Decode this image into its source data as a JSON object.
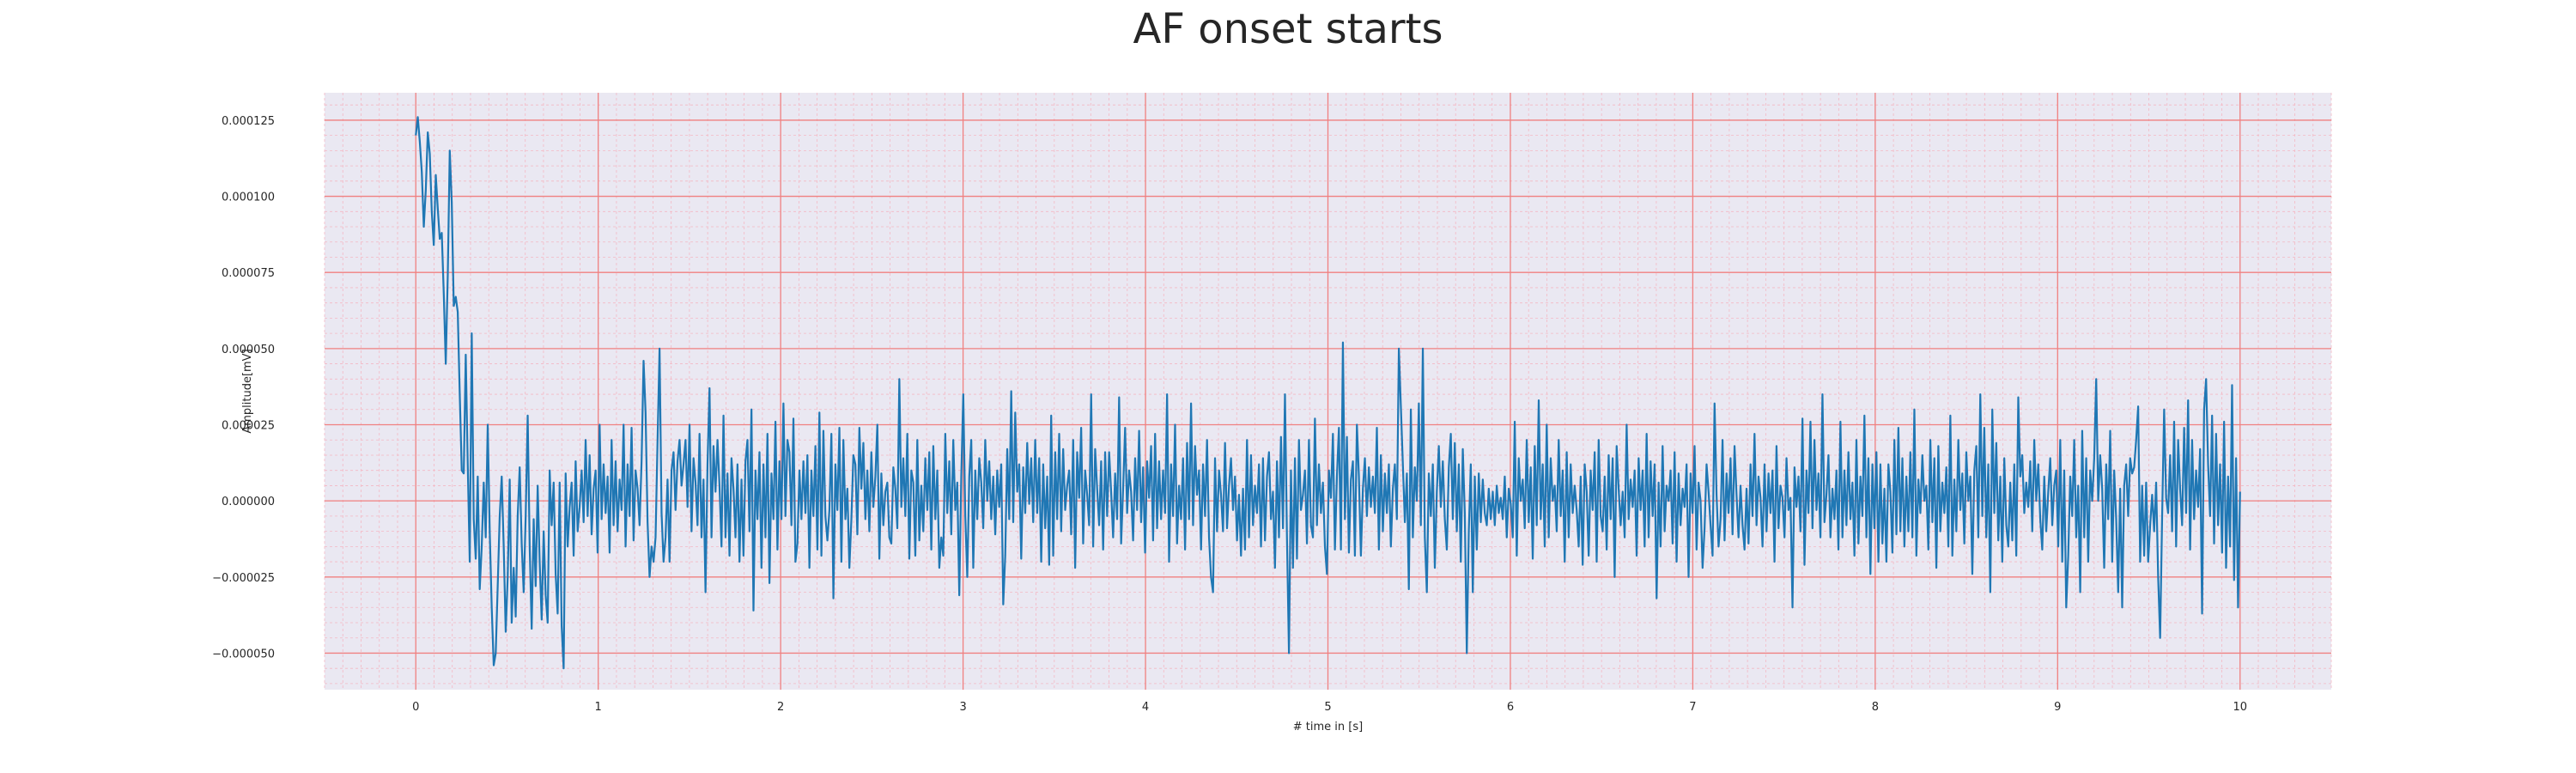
{
  "chart_data": {
    "type": "line",
    "title": "AF onset starts",
    "xlabel": "# time in [s]",
    "ylabel": "Amplitude[mV]",
    "xlim": [
      -0.5,
      10.5
    ],
    "ylim": [
      -6.2e-05,
      0.000134
    ],
    "xticks": [
      0,
      1,
      2,
      3,
      4,
      5,
      6,
      7,
      8,
      9,
      10
    ],
    "xtick_labels": [
      "0",
      "1",
      "2",
      "3",
      "4",
      "5",
      "6",
      "7",
      "8",
      "9",
      "10"
    ],
    "yticks": [
      -5e-05,
      -2.5e-05,
      0,
      2.5e-05,
      5e-05,
      7.5e-05,
      0.0001,
      0.000125
    ],
    "ytick_labels": [
      "−0.000050",
      "−0.000025",
      "0.000000",
      "0.000025",
      "0.000050",
      "0.000075",
      "0.000100",
      "0.000125"
    ],
    "grid": true,
    "colors": {
      "background": "#eae8f2",
      "major_grid": "#f08080",
      "minor_grid": "#f4b8c4",
      "line": "#1f77b4"
    },
    "series": [
      {
        "values_note_x_step": 0.02,
        "x_start": 0,
        "values": [
          0.00012,
          0.000126,
          0.000118,
          0.000108,
          9e-05,
          0.000102,
          0.000121,
          0.000114,
          9.5e-05,
          8.4e-05,
          0.000107,
          9.6e-05,
          8.6e-05,
          8.8e-05,
          6.8e-05,
          4.5e-05,
          7.4e-05,
          0.000115,
          9.8e-05,
          6.4e-05,
          6.7e-05,
          6.2e-05,
          3.5e-05,
          1e-05,
          9e-06,
          4.8e-05,
          1.2e-05,
          -2e-05,
          5.5e-05,
          -6e-06,
          -1.9e-05,
          8e-06,
          -2.9e-05,
          -1.5e-05,
          6e-06,
          -1.2e-05,
          2.5e-05,
          -1e-05,
          -3.5e-05,
          -5.4e-05,
          -5e-05,
          -2.8e-05,
          -5e-06,
          8e-06,
          -1.5e-05,
          -4.3e-05,
          -2.5e-05,
          7e-06,
          -4e-05,
          -2.2e-05,
          -3.8e-05,
          -5e-06,
          1.1e-05,
          -1.4e-05,
          -3e-05,
          -5e-06,
          2.8e-05,
          -1.5e-05,
          -4.2e-05,
          -6e-06,
          -2.8e-05,
          5e-06,
          -2e-05,
          -3.9e-05,
          -1e-05,
          -3.1e-05,
          -4e-05,
          1e-05,
          -8e-06,
          6e-06,
          -2.4e-05,
          -3.7e-05,
          6e-06,
          -4.1e-05,
          -5.5e-05,
          9e-06,
          -1.5e-05,
          -2e-06,
          6e-06,
          -1.8e-05,
          1.3e-05,
          -1e-05,
          -2e-06,
          1e-05,
          -7e-06,
          2e-05,
          -5e-06,
          1.5e-05,
          -1.1e-05,
          4e-06,
          1e-05,
          -1.7e-05,
          2.5e-05,
          -6e-06,
          1.2e-05,
          -4e-06,
          8e-06,
          -1.7e-05,
          2e-05,
          -8e-06,
          1.3e-05,
          -1e-05,
          7e-06,
          -3e-06,
          2.5e-05,
          -1.5e-05,
          1.2e-05,
          -5e-06,
          2.4e-05,
          -1.3e-05,
          1e-05,
          4e-06,
          -8e-06,
          1.3e-05,
          4.6e-05,
          2.9e-05,
          -7e-06,
          -2.5e-05,
          -1.5e-05,
          -2e-05,
          -1.2e-05,
          2e-05,
          5e-05,
          -4e-06,
          -2e-05,
          -1.2e-05,
          7e-06,
          -2e-05,
          1e-05,
          1.6e-05,
          -3e-06,
          1.3e-05,
          2e-05,
          5e-06,
          1.2e-05,
          2e-05,
          -2e-06,
          2.5e-05,
          -1e-05,
          1.4e-05,
          6e-06,
          -8e-06,
          2.2e-05,
          -1.2e-05,
          7e-06,
          -3e-05,
          1.2e-05,
          3.7e-05,
          -1.2e-05,
          1.8e-05,
          3e-06,
          2e-05,
          5e-06,
          -1.5e-05,
          2.8e-05,
          -1.2e-05,
          9e-06,
          -1.8e-05,
          1.4e-05,
          4e-06,
          -1.2e-05,
          1.2e-05,
          -2e-05,
          7e-06,
          -1.8e-05,
          1.3e-05,
          2e-05,
          -1e-05,
          3e-05,
          -3.6e-05,
          1e-05,
          -6e-06,
          1.6e-05,
          -2.2e-05,
          1.2e-05,
          -1.2e-05,
          2.2e-05,
          -2.7e-05,
          9e-06,
          -6e-06,
          2.6e-05,
          -1.6e-05,
          1.3e-05,
          -6e-06,
          3.2e-05,
          -5e-06,
          2e-05,
          1.6e-05,
          -8e-06,
          2.7e-05,
          -2e-05,
          -1.4e-05,
          1e-05,
          -6e-06,
          1.3e-05,
          -4e-06,
          1.5e-05,
          -2.2e-05,
          1e-05,
          -5e-06,
          1.8e-05,
          -1.6e-05,
          2.9e-05,
          -1.8e-05,
          2.3e-05,
          -5e-06,
          -1.3e-05,
          -3e-06,
          2.2e-05,
          -3.2e-05,
          1.2e-05,
          -3e-06,
          2.4e-05,
          -2e-05,
          2e-05,
          -6e-06,
          4e-06,
          -2.2e-05,
          -6e-06,
          1.5e-05,
          1.2e-05,
          -1.1e-05,
          2.4e-05,
          4e-06,
          1.9e-05,
          -6e-06,
          1e-05,
          -1e-05,
          1.6e-05,
          -2e-06,
          8e-06,
          2.5e-05,
          -1.9e-05,
          9e-06,
          -8e-06,
          3e-06,
          6e-06,
          -1.2e-05,
          -1.4e-05,
          1.1e-05,
          4e-06,
          -9e-06,
          4e-05,
          -2e-06,
          1.4e-05,
          -5e-06,
          2.2e-05,
          -1.9e-05,
          1e-05,
          6e-06,
          -1.8e-05,
          2e-05,
          -1.3e-05,
          5e-06,
          -1e-05,
          1.4e-05,
          -3e-06,
          1.6e-05,
          -1.6e-05,
          1.8e-05,
          -6e-06,
          1e-05,
          -2.2e-05,
          -1.2e-05,
          -1.8e-05,
          2.2e-05,
          -4e-06,
          1.3e-05,
          -1.1e-05,
          2e-05,
          -3e-06,
          6e-06,
          -3.1e-05,
          8e-06,
          3.5e-05,
          -5e-06,
          -2.5e-05,
          8e-06,
          2e-05,
          -2.2e-05,
          1e-05,
          -6e-06,
          1.4e-05,
          6e-06,
          -9e-06,
          2e-05,
          0.0,
          1.3e-05,
          -6e-06,
          8e-06,
          -1.1e-05,
          1e-05,
          -2e-06,
          1.2e-05,
          -3.4e-05,
          -1.8e-05,
          1.7e-05,
          -6e-06,
          3.6e-05,
          -7e-06,
          2.9e-05,
          3e-06,
          1.2e-05,
          -1.9e-05,
          1.1e-05,
          -4e-06,
          1.9e-05,
          -1e-06,
          1.4e-05,
          -7e-06,
          2e-05,
          -4e-06,
          1.4e-05,
          -2e-05,
          1.2e-05,
          -9e-06,
          8e-06,
          -2.1e-05,
          2.8e-05,
          -1.8e-05,
          1.6e-05,
          -6e-06,
          2.2e-05,
          -1e-05,
          1.7e-05,
          -3e-06,
          5e-06,
          1e-05,
          -1.1e-05,
          2e-05,
          -2.2e-05,
          1.6e-05,
          1e-06,
          2.4e-05,
          -1.4e-05,
          1e-05,
          2e-06,
          -8e-06,
          3.5e-05,
          -1.5e-05,
          1.7e-05,
          4e-06,
          -8e-06,
          1.3e-05,
          -1.6e-05,
          1.6e-05,
          -5e-06,
          1.6e-05,
          3e-06,
          -1.2e-05,
          9e-06,
          -6e-06,
          3.4e-05,
          -1.4e-05,
          4e-06,
          2.4e-05,
          -4e-06,
          1e-05,
          3e-06,
          -1.3e-05,
          1.4e-05,
          -3e-06,
          2.3e-05,
          -7e-06,
          1.1e-05,
          -1.7e-05,
          1.3e-05,
          1e-06,
          1.8e-05,
          -1.3e-05,
          2.2e-05,
          -9e-06,
          1.3e-05,
          -6e-06,
          1e-05,
          -4e-06,
          3.5e-05,
          -2e-05,
          1.2e-05,
          -5e-06,
          2.5e-05,
          -1.4e-05,
          5e-06,
          -6e-06,
          1.4e-05,
          -1.6e-05,
          1.9e-05,
          -6e-06,
          3.2e-05,
          -8e-06,
          1.8e-05,
          2e-06,
          1e-05,
          -1.6e-05,
          1.2e-05,
          -5e-06,
          2e-05,
          -1.2e-05,
          -2.5e-05,
          -3e-05,
          1.4e-05,
          -1e-05,
          1e-05,
          2e-06,
          -1e-05,
          1.9e-05,
          -9e-06,
          5e-06,
          1.4e-05,
          -3e-06,
          8e-06,
          -1.3e-05,
          2e-06,
          -1.8e-05,
          4e-06,
          -1.6e-05,
          2e-05,
          -1.2e-05,
          1.5e-05,
          -8e-06,
          5e-06,
          -4e-06,
          1.2e-05,
          -1.5e-05,
          1.4e-05,
          -1.3e-05,
          8e-06,
          1.6e-05,
          -6e-06,
          3e-06,
          -2.2e-05,
          1.3e-05,
          -1.2e-05,
          2.1e-05,
          -9e-06,
          3.5e-05,
          -1.2e-05,
          -5e-05,
          1e-05,
          -2.2e-05,
          1.4e-05,
          -1.9e-05,
          2e-05,
          -3e-06,
          2e-06,
          1e-05,
          -1.4e-05,
          2e-05,
          -8e-06,
          -1.2e-05,
          2.7e-05,
          -8e-06,
          1.2e-05,
          -4e-06,
          6e-06,
          -1.5e-05,
          -2.4e-05,
          1e-05,
          1e-06,
          2.2e-05,
          -1.6e-05,
          8e-06,
          2.4e-05,
          -1.6e-05,
          5.2e-05,
          -6e-06,
          2.1e-05,
          -1.7e-05,
          7e-06,
          1.3e-05,
          -1.8e-05,
          2.5e-05,
          8e-06,
          -1.8e-05,
          4e-06,
          1.4e-05,
          -5e-06,
          1.1e-05,
          -2e-06,
          8e-06,
          -4e-06,
          2.4e-05,
          -1.6e-05,
          1.5e-05,
          -1e-05,
          9e-06,
          -4e-06,
          1.2e-05,
          -1.5e-05,
          4e-06,
          1.2e-05,
          -6e-06,
          5e-05,
          3.1e-05,
          1.2e-05,
          -7e-06,
          9e-06,
          -2.9e-05,
          3e-05,
          -1.2e-05,
          1.1e-05,
          0.0,
          3.2e-05,
          -8e-06,
          5e-05,
          -1.2e-05,
          -3e-05,
          9e-06,
          -5e-06,
          1.2e-05,
          -2.2e-05,
          3e-06,
          1.8e-05,
          -2e-06,
          1.3e-05,
          -6e-06,
          -1.6e-05,
          1.1e-05,
          2.2e-05,
          -6e-06,
          1.9e-05,
          -1e-05,
          1.2e-05,
          -2e-05,
          1.7e-05,
          -4e-06,
          -5e-05,
          -1e-05,
          1.2e-05,
          -3e-05,
          8e-06,
          -1.6e-05,
          9e-06,
          -7e-06,
          7e-06,
          -4e-06,
          -8e-06,
          4e-06,
          -6e-06,
          3e-06,
          -8e-06,
          5e-06,
          -4e-06,
          1e-06,
          -6e-06,
          8e-06,
          -1.2e-05,
          4e-06,
          -1e-06,
          -1.2e-05,
          2.6e-05,
          -1.8e-05,
          1.4e-05,
          0.0,
          7e-06,
          -9e-06,
          2e-05,
          -7e-06,
          1.1e-05,
          -1.9e-05,
          1.8e-05,
          -8e-06,
          3.3e-05,
          -6e-06,
          1.2e-05,
          -1.5e-05,
          2.5e-05,
          -1.2e-05,
          1.4e-05,
          0.0,
          5e-06,
          -1e-05,
          2e-05,
          -5e-06,
          1e-05,
          -2e-05,
          1.6e-05,
          -1.2e-05,
          1.2e-05,
          -4e-06,
          5e-06,
          -3e-06,
          -1.5e-05,
          8e-06,
          -2.1e-05,
          1.2e-05,
          3e-06,
          -1.8e-05,
          1e-05,
          -3e-06,
          1.6e-05,
          -2e-05,
          2e-05,
          -5e-06,
          -1e-05,
          8e-06,
          -1.6e-05,
          1.5e-05,
          -6e-06,
          1.4e-05,
          -2.5e-05,
          1.8e-05,
          4e-06,
          -8e-06,
          3e-06,
          -1.2e-05,
          2.5e-05,
          -6e-06,
          7e-06,
          -2e-06,
          1e-05,
          -1.8e-05,
          1.4e-05,
          -3e-06,
          1e-05,
          -1.5e-05,
          2.2e-05,
          -1.2e-05,
          1.3e-05,
          -5e-06,
          1.2e-05,
          -3.2e-05,
          6e-06,
          -1.5e-05,
          1.8e-05,
          -1e-05,
          5e-06,
          0.0,
          1e-05,
          -1.4e-05,
          1.6e-05,
          -2e-05,
          9e-06,
          -8e-06,
          4e-06,
          -2e-06,
          1.2e-05,
          -2.5e-05,
          9e-06,
          -4e-06,
          1.8e-05,
          -1.6e-05,
          6e-06,
          0.0,
          -2.2e-05,
          -9e-06,
          1.2e-05,
          3e-06,
          -8e-06,
          -1.8e-05,
          3.2e-05,
          2e-06,
          -1.5e-05,
          -6e-06,
          2e-05,
          -1.3e-05,
          9e-06,
          -4e-06,
          1.4e-05,
          -1.1e-05,
          1.8e-05,
          2e-06,
          -1.2e-05,
          5e-06,
          -8e-06,
          -1.6e-05,
          4e-06,
          -1.4e-05,
          1.2e-05,
          -5e-06,
          2.2e-05,
          -8e-06,
          8e-06,
          1e-06,
          -1.5e-05,
          1.2e-05,
          -1e-05,
          9e-06,
          -4e-06,
          1e-05,
          -2e-05,
          1.8e-05,
          -9e-06,
          5e-06,
          1e-06,
          -1.2e-05,
          1.4e-05,
          -3e-06,
          1e-06,
          -3.5e-05,
          1.1e-05,
          -2e-06,
          8e-06,
          -1e-05,
          2.7e-05,
          -2.1e-05,
          1e-05,
          -4e-06,
          2.6e-05,
          -9e-06,
          2e-05,
          -3e-06,
          9e-06,
          -1.2e-05,
          3.5e-05,
          -7e-06,
          2e-06,
          1.5e-05,
          -1.2e-05,
          4e-06,
          -6e-06,
          1e-05,
          -1.6e-05,
          2.6e-05,
          -1.2e-05,
          1e-05,
          -8e-06,
          1.6e-05,
          -6e-06,
          6e-06,
          -1.8e-05,
          2e-05,
          -1.4e-05,
          8e-06,
          -5e-06,
          2.8e-05,
          -1.2e-05,
          1.4e-05,
          -2.4e-05,
          1.2e-05,
          -9e-06,
          1.6e-05,
          -2e-05,
          1.2e-05,
          -1.4e-05,
          4e-06,
          -2e-05,
          1.2e-05,
          3e-06,
          -1.7e-05,
          2e-05,
          -1.1e-05,
          2.4e-05,
          -1e-05,
          1.4e-05,
          -1.5e-05,
          8e-06,
          -1e-05,
          1.6e-05,
          -1.2e-05,
          3e-05,
          -1.8e-05,
          7e-06,
          -4e-06,
          1.5e-05,
          0.0,
          5e-06,
          -1.6e-05,
          2e-05,
          -7e-06,
          1.4e-05,
          -2.2e-05,
          1.8e-05,
          -1e-05,
          6e-06,
          -4e-06,
          1.1e-05,
          -1.5e-05,
          2.8e-05,
          -1.8e-05,
          7e-06,
          -1e-05,
          2e-05,
          -3e-06,
          9e-06,
          -1.4e-05,
          1.6e-05,
          0.0,
          8e-06,
          -2.4e-05,
          1e-05,
          1.8e-05,
          -1.2e-05,
          3.5e-05,
          -5e-06,
          2.4e-05,
          -1.2e-05,
          1.2e-05,
          -3e-05,
          3e-05,
          -4e-06,
          1.9e-05,
          -1.3e-05,
          8e-06,
          -2e-05,
          1.4e-05,
          -8e-06,
          -1.5e-05,
          6e-06,
          -1.3e-05,
          1.2e-05,
          -1.8e-05,
          3.4e-05,
          8e-06,
          1.5e-05,
          -4e-06,
          6e-06,
          -2e-06,
          1.3e-05,
          -1e-05,
          2e-05,
          0.0,
          1.2e-05,
          -6e-06,
          -1.6e-05,
          8e-06,
          -1e-05,
          3e-06,
          1.4e-05,
          -8e-06,
          5e-06,
          1e-05,
          -1.5e-05,
          2e-05,
          -2e-05,
          1e-05,
          -3.5e-05,
          -1.8e-05,
          8e-06,
          -5e-06,
          2e-05,
          -1.2e-05,
          5e-06,
          -3e-05,
          2.3e-05,
          -1.2e-05,
          1.4e-05,
          -2e-05,
          1e-05,
          0.0,
          1.4e-05,
          4e-05,
          0.0,
          1.5e-05,
          4e-06,
          -2.2e-05,
          1.2e-05,
          -6e-06,
          2.3e-05,
          -2e-05,
          1e-05,
          -6e-06,
          -3e-05,
          4e-06,
          -3.5e-05,
          5e-06,
          1.2e-05,
          -5e-06,
          1.4e-05,
          9e-06,
          1.1e-05,
          2e-05,
          3.1e-05,
          -2e-05,
          5e-06,
          -1.8e-05,
          6e-06,
          -2e-05,
          -8e-06,
          2e-06,
          -1e-05,
          6e-06,
          -2.5e-05,
          -4.5e-05,
          -5e-06,
          3e-05,
          1e-06,
          -4e-06,
          1.5e-05,
          -1e-05,
          2.6e-05,
          -1.5e-05,
          2e-05,
          4e-06,
          -8e-06,
          2.4e-05,
          -4e-06,
          3.3e-05,
          -1.6e-05,
          2e-05,
          -6e-06,
          1e-05,
          -2e-06,
          1.7e-05,
          -3.7e-05,
          3e-05,
          4e-05,
          1.2e-05,
          -5e-06,
          2.8e-05,
          -1.4e-05,
          2.2e-05,
          -8e-06,
          1.2e-05,
          -1.7e-05,
          2.6e-05,
          -2.2e-05,
          8e-06,
          -1.5e-05,
          3.8e-05,
          -2.6e-05,
          1.4e-05,
          -3.5e-05,
          3e-06
        ]
      }
    ]
  }
}
